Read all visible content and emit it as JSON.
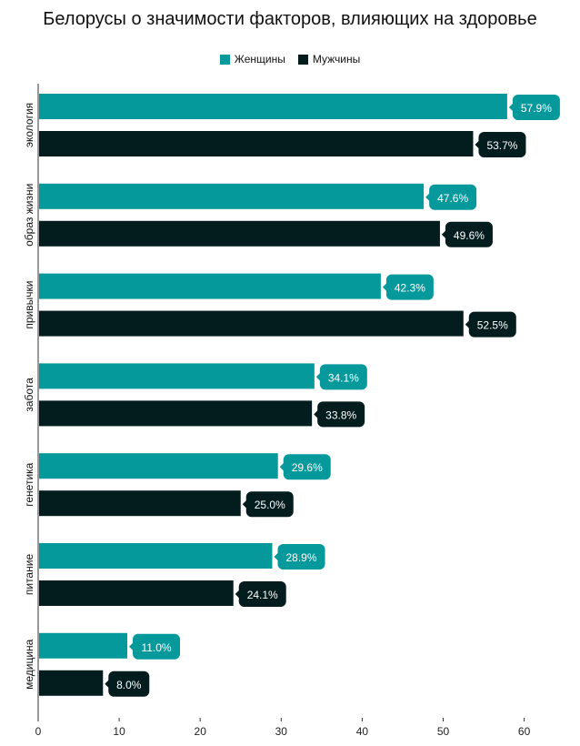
{
  "chart_data": {
    "type": "bar",
    "orientation": "horizontal",
    "title": "Белорусы о значимости факторов, влияющих на здоровье",
    "categories": [
      "экология",
      "образ жизни",
      "привычки",
      "забота",
      "генетика",
      "питание",
      "медицина"
    ],
    "series": [
      {
        "name": "Женщины",
        "color": "#06999b",
        "values": [
          57.9,
          47.6,
          42.3,
          34.1,
          29.6,
          28.9,
          11.0
        ],
        "labels": [
          "57.9%",
          "47.6%",
          "42.3%",
          "34.1%",
          "29.6%",
          "28.9%",
          "11.0%"
        ]
      },
      {
        "name": "Мужчины",
        "color": "#031c1d",
        "values": [
          53.7,
          49.6,
          52.5,
          33.8,
          25.0,
          24.1,
          8.0
        ],
        "labels": [
          "53.7%",
          "49.6%",
          "52.5%",
          "33.8%",
          "25.0%",
          "24.1%",
          "8.0%"
        ]
      }
    ],
    "xlim": [
      0,
      65
    ],
    "xticks": [
      "0",
      "10",
      "20",
      "30",
      "40",
      "50",
      "60"
    ],
    "grid": false,
    "legend_position": "top"
  }
}
